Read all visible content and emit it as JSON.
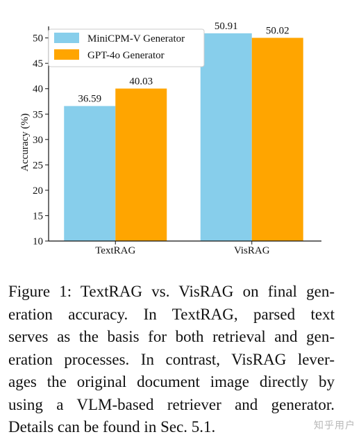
{
  "chart_data": {
    "type": "bar",
    "categories": [
      "TextRAG",
      "VisRAG"
    ],
    "series": [
      {
        "name": "MiniCPM-V Generator",
        "values": [
          36.59,
          50.91
        ],
        "color": "#87CEEB"
      },
      {
        "name": "GPT-4o Generator",
        "values": [
          40.03,
          50.02
        ],
        "color": "#FFA500"
      }
    ],
    "value_labels": [
      [
        "36.59",
        "50.91"
      ],
      [
        "40.03",
        "50.02"
      ]
    ],
    "ylabel": "Accuracy (%)",
    "xlabel": "",
    "ylim": [
      10,
      52
    ],
    "yticks": [
      10,
      15,
      20,
      25,
      30,
      35,
      40,
      45,
      50
    ],
    "grid": false,
    "legend_position": "top-left"
  },
  "caption": {
    "lines": [
      "Figure 1: TextRAG vs. VisRAG on final gen-",
      "eration accuracy.  In TextRAG, parsed text",
      "serves as the basis for both retrieval and gen-",
      "eration processes. In contrast, VisRAG lever-",
      "ages the original document image directly by",
      "using a VLM-based retriever and generator.",
      "Details can be found in Sec. 5.1."
    ]
  },
  "watermark": "知乎用户"
}
